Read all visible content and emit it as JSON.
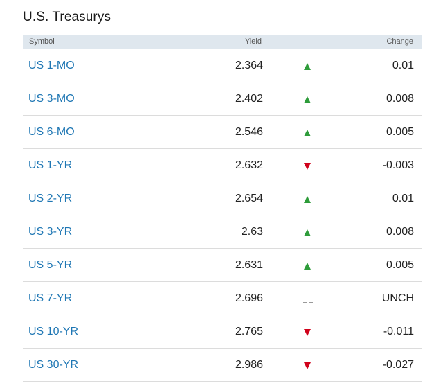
{
  "widget": {
    "title": "U.S. Treasurys"
  },
  "table": {
    "headers": {
      "symbol": "Symbol",
      "yield": "Yield",
      "change": "Change"
    },
    "rows": [
      {
        "symbol": "US 1-MO",
        "yield": "2.364",
        "direction": "up",
        "change": "0.01"
      },
      {
        "symbol": "US 3-MO",
        "yield": "2.402",
        "direction": "up",
        "change": "0.008"
      },
      {
        "symbol": "US 6-MO",
        "yield": "2.546",
        "direction": "up",
        "change": "0.005"
      },
      {
        "symbol": "US 1-YR",
        "yield": "2.632",
        "direction": "down",
        "change": "-0.003"
      },
      {
        "symbol": "US 2-YR",
        "yield": "2.654",
        "direction": "up",
        "change": "0.01"
      },
      {
        "symbol": "US 3-YR",
        "yield": "2.63",
        "direction": "up",
        "change": "0.008"
      },
      {
        "symbol": "US 5-YR",
        "yield": "2.631",
        "direction": "up",
        "change": "0.005"
      },
      {
        "symbol": "US 7-YR",
        "yield": "2.696",
        "direction": "unchanged",
        "change": "UNCH"
      },
      {
        "symbol": "US 10-YR",
        "yield": "2.765",
        "direction": "down",
        "change": "-0.011"
      },
      {
        "symbol": "US 30-YR",
        "yield": "2.986",
        "direction": "down",
        "change": "-0.027"
      }
    ]
  },
  "colors": {
    "link": "#1f77b4",
    "up": "#2e9c3a",
    "down": "#d0021b",
    "header_bg": "#dfe7ee"
  },
  "icons": {
    "up": "arrow-up-icon",
    "down": "arrow-down-icon",
    "unchanged": "unchanged-dash-icon"
  }
}
